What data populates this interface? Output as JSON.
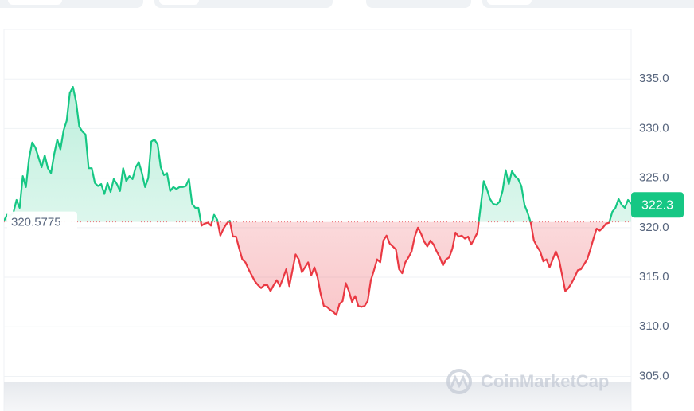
{
  "chart_data": {
    "type": "line",
    "values": [
      320.7,
      321.3,
      321.2,
      321.5,
      322.8,
      322.0,
      325.2,
      324.1,
      327.0,
      328.6,
      328.1,
      327.1,
      326.1,
      327.3,
      326.0,
      325.5,
      327.4,
      328.9,
      327.9,
      329.8,
      330.8,
      333.6,
      334.2,
      332.7,
      330.2,
      329.7,
      329.4,
      326.0,
      326.0,
      324.5,
      324.2,
      324.4,
      323.4,
      324.5,
      323.6,
      324.9,
      324.4,
      323.7,
      326.0,
      324.7,
      325.2,
      324.9,
      326.1,
      326.6,
      325.5,
      324.1,
      325.0,
      328.7,
      328.9,
      328.4,
      326.1,
      325.3,
      325.5,
      323.7,
      324.1,
      323.9,
      324.1,
      324.1,
      324.2,
      324.9,
      322.4,
      322.0,
      322.0,
      320.2,
      320.4,
      320.5,
      320.2,
      321.3,
      320.8,
      319.2,
      319.9,
      320.4,
      320.7,
      319.1,
      319.1,
      317.9,
      316.8,
      316.5,
      315.8,
      315.2,
      314.6,
      314.2,
      313.9,
      314.2,
      314.2,
      313.6,
      314.2,
      314.7,
      314.1,
      314.9,
      315.8,
      314.1,
      315.7,
      317.3,
      316.8,
      315.5,
      316.0,
      316.5,
      315.2,
      316.0,
      315.0,
      313.3,
      312.1,
      312.0,
      311.7,
      311.5,
      311.2,
      312.3,
      312.6,
      314.4,
      313.6,
      312.5,
      313.1,
      312.1,
      312.0,
      312.1,
      312.6,
      314.7,
      315.7,
      316.8,
      316.5,
      318.7,
      319.2,
      318.4,
      318.1,
      317.8,
      315.8,
      315.4,
      316.5,
      317.0,
      317.6,
      319.1,
      320.0,
      319.4,
      318.6,
      318.1,
      318.7,
      318.3,
      317.6,
      317.0,
      316.2,
      316.8,
      317.0,
      317.9,
      319.5,
      319.1,
      319.2,
      318.9,
      319.1,
      318.3,
      318.9,
      319.5,
      322.1,
      324.7,
      323.9,
      322.9,
      322.4,
      322.3,
      322.6,
      323.7,
      325.8,
      324.4,
      325.7,
      325.2,
      324.9,
      324.2,
      322.3,
      321.5,
      320.5,
      318.7,
      318.1,
      317.6,
      316.6,
      316.8,
      316.0,
      316.8,
      317.6,
      316.8,
      315.2,
      313.6,
      313.9,
      314.4,
      315.0,
      315.7,
      315.8,
      316.3,
      316.8,
      317.8,
      318.9,
      319.9,
      319.7,
      320.0,
      320.4,
      320.5,
      321.6,
      322.0,
      322.9,
      322.3,
      322.0,
      322.8,
      322.4
    ],
    "reference_value": 320.5775,
    "current_price": 322.3,
    "ylim": [
      301.5,
      340
    ],
    "yticks": [
      {
        "value": 305,
        "label": "305.0"
      },
      {
        "value": 310,
        "label": "310.0"
      },
      {
        "value": 315,
        "label": "315.0"
      },
      {
        "value": 320,
        "label": "320.0"
      },
      {
        "value": 325,
        "label": "325.0"
      },
      {
        "value": 330,
        "label": "330.0"
      },
      {
        "value": 335,
        "label": "335.0"
      }
    ],
    "grid": true,
    "color_up": "#16c784",
    "color_down": "#ea3943",
    "watermark": "CoinMarketCap"
  }
}
